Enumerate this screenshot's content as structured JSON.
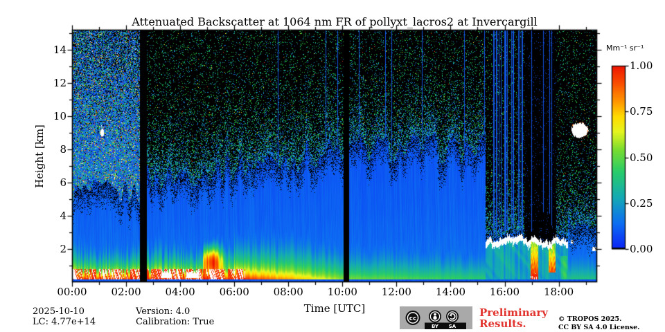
{
  "chart_data": {
    "type": "heatmap",
    "title": "Attenuated Backscatter at 1064 nm FR of pollyxt_lacros2 at Invercargill",
    "xlabel": "Time [UTC]",
    "ylabel": "Height [km]",
    "xlim_hours": [
      0,
      19.42
    ],
    "ylim_km": [
      0,
      15.2
    ],
    "x_ticks": [
      {
        "hour": 0,
        "label": "00:00"
      },
      {
        "hour": 2,
        "label": "02:00"
      },
      {
        "hour": 4,
        "label": "04:00"
      },
      {
        "hour": 6,
        "label": "06:00"
      },
      {
        "hour": 8,
        "label": "08:00"
      },
      {
        "hour": 10,
        "label": "10:00"
      },
      {
        "hour": 12,
        "label": "12:00"
      },
      {
        "hour": 14,
        "label": "14:00"
      },
      {
        "hour": 16,
        "label": "16:00"
      },
      {
        "hour": 18,
        "label": "18:00"
      }
    ],
    "x_minor_tick_hours": [
      1,
      3,
      5,
      7,
      9,
      11,
      13,
      15,
      17,
      19
    ],
    "y_ticks_km": [
      2,
      4,
      6,
      8,
      10,
      12,
      14
    ],
    "y_minor_ticks_km": [
      1,
      3,
      5,
      7,
      9,
      11,
      13,
      15
    ],
    "grid": false,
    "colorbar": {
      "label": "Mm⁻¹ sr⁻¹",
      "clim": [
        0,
        1
      ],
      "ticks": [
        {
          "value": 1.0,
          "label": "1.00"
        },
        {
          "value": 0.75,
          "label": "0.75"
        },
        {
          "value": 0.5,
          "label": "0.50"
        },
        {
          "value": 0.25,
          "label": "0.25"
        },
        {
          "value": 0.0,
          "label": "0.00"
        }
      ],
      "over_color": "#ffffff",
      "under_color": "#000000",
      "colormap_stops": [
        [
          0.0,
          "#0b24f5"
        ],
        [
          0.14,
          "#0d6ef2"
        ],
        [
          0.28,
          "#14aab4"
        ],
        [
          0.42,
          "#28cc6a"
        ],
        [
          0.54,
          "#78dc30"
        ],
        [
          0.64,
          "#e6f51e"
        ],
        [
          0.72,
          "#ffdc00"
        ],
        [
          0.8,
          "#ff9b00"
        ],
        [
          0.9,
          "#fa5200"
        ],
        [
          1.0,
          "#ee1400"
        ]
      ]
    },
    "data_gaps_hours": [
      [
        2.5,
        2.77
      ],
      [
        10.05,
        10.26
      ]
    ],
    "features": {
      "noisy_profile_hours": [
        0,
        2.5
      ],
      "surface_layer": {
        "strong_red_until_hour": 6.4,
        "plume": {
          "center_hour": 5.15,
          "center_km": 1.35,
          "top_km": 2.4
        },
        "low_cloud_hours": [
          [
            3.3,
            3.62
          ],
          [
            4.22,
            4.68
          ]
        ]
      },
      "low_cloud_event": {
        "hours": [
          15.3,
          18.35
        ],
        "cloud_top_km": 2.1,
        "attenuated_hours": [
          16.72,
          17.92
        ],
        "precip_hours": [
          [
            16.95,
            17.25
          ],
          [
            17.62,
            17.88
          ]
        ]
      },
      "high_cloud": {
        "center_hour": 18.78,
        "center_km": 9.15
      },
      "small_cloud": {
        "center_hour": 1.12,
        "center_km": 9.0
      },
      "artifact_lines_hours": [
        7.3,
        16.72
      ],
      "dense_artifact_lines_hours": [
        15.15,
        16.72
      ]
    }
  },
  "annotations": {
    "date": "2025-10-10",
    "lc": "LC: 4.77e+14",
    "version": "Version: 4.0",
    "calibration": "Calibration: True",
    "preliminary_line1": "Preliminary",
    "preliminary_line2": "Results.",
    "preliminary_color": "#e2342e",
    "copyright_line1": "© TROPOS 2025.",
    "copyright_line2": "CC BY SA 4.0 License.",
    "license_badge": {
      "cc": "cc",
      "by": "BY",
      "sa": "SA"
    }
  }
}
